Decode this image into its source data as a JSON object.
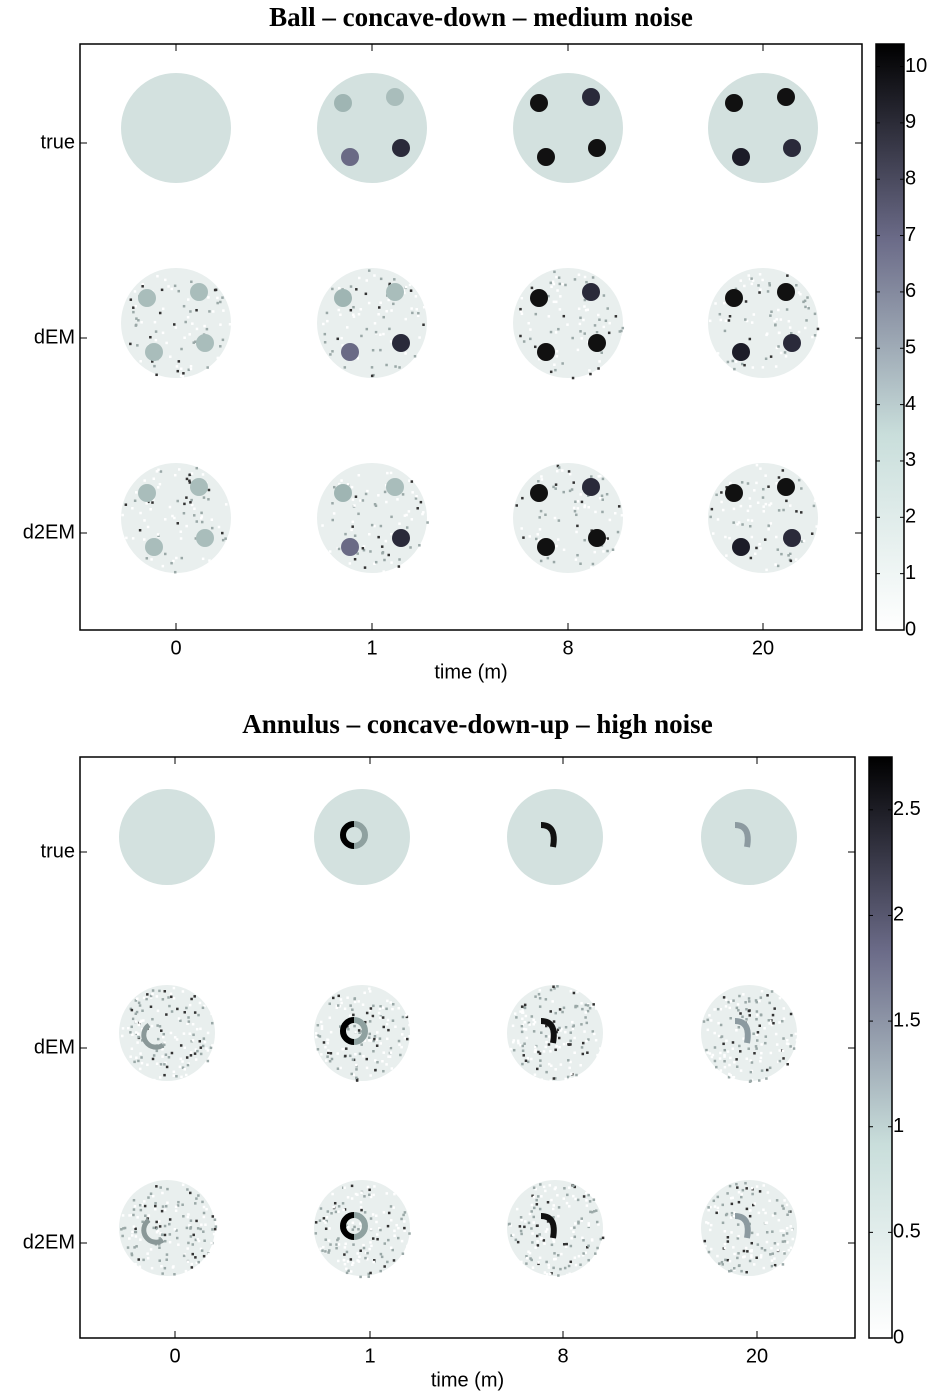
{
  "chart_data": [
    {
      "type": "image-grid",
      "title": "Ball – concave-down – medium noise",
      "xlabel": "time (m)",
      "categories": [
        "0",
        "1",
        "8",
        "20"
      ],
      "rows": [
        "true",
        "dEM",
        "d2EM"
      ],
      "clim": [
        0,
        10.4
      ],
      "cticks": [
        0,
        1,
        2,
        3,
        4,
        5,
        6,
        7,
        8,
        9,
        10
      ],
      "colormap": [
        "#ffffff",
        "#c9dedb",
        "#6b6b88",
        "#000000"
      ],
      "shape": "ball"
    },
    {
      "type": "image-grid",
      "title": "Annulus – concave-down-up – high noise",
      "xlabel": "time (m)",
      "categories": [
        "0",
        "1",
        "8",
        "20"
      ],
      "rows": [
        "true",
        "dEM",
        "d2EM"
      ],
      "clim": [
        0,
        2.75
      ],
      "cticks": [
        0,
        0.5,
        1,
        1.5,
        2,
        2.5
      ],
      "colormap": [
        "#ffffff",
        "#c9dedb",
        "#6b6b88",
        "#000000"
      ],
      "shape": "annulus"
    }
  ]
}
